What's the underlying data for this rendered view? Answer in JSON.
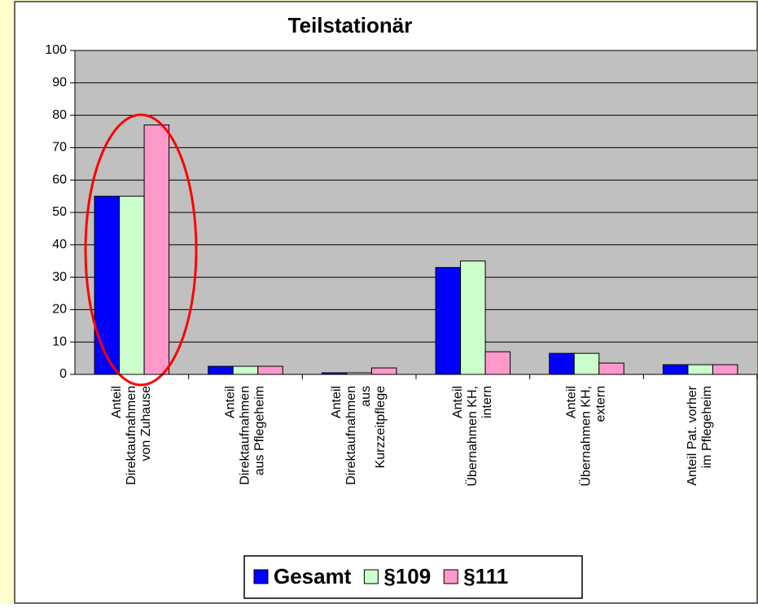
{
  "chart_data": {
    "type": "bar",
    "title": "Teilstationär",
    "categories": [
      "Anteil\nDirektaufnahmen\nvon Zuhause",
      "Anteil\nDirektaufnahmen\naus Pflegeheim",
      "Anteil\nDirektaufnahmen\naus\nKurzzeitpflege",
      "Anteil\nÜbernahmen KH,\nintern",
      "Anteil\nÜbernahmen KH,\nextern",
      "Anteil Pat. vorher\nim Pflegeheim"
    ],
    "series": [
      {
        "name": "Gesamt",
        "color": "#0000ff",
        "values": [
          55,
          2.5,
          0.5,
          33,
          6.5,
          3
        ]
      },
      {
        "name": "§109",
        "color": "#ccffcc",
        "values": [
          55,
          2.5,
          0.5,
          35,
          6.5,
          3
        ]
      },
      {
        "name": "§111",
        "color": "#ff99cc",
        "values": [
          77,
          2.5,
          2,
          7,
          3.5,
          3
        ]
      }
    ],
    "ylim": [
      0,
      100
    ],
    "yticks": [
      0,
      10,
      20,
      30,
      40,
      50,
      60,
      70,
      80,
      90,
      100
    ],
    "grid": true,
    "legend": "bottom"
  }
}
